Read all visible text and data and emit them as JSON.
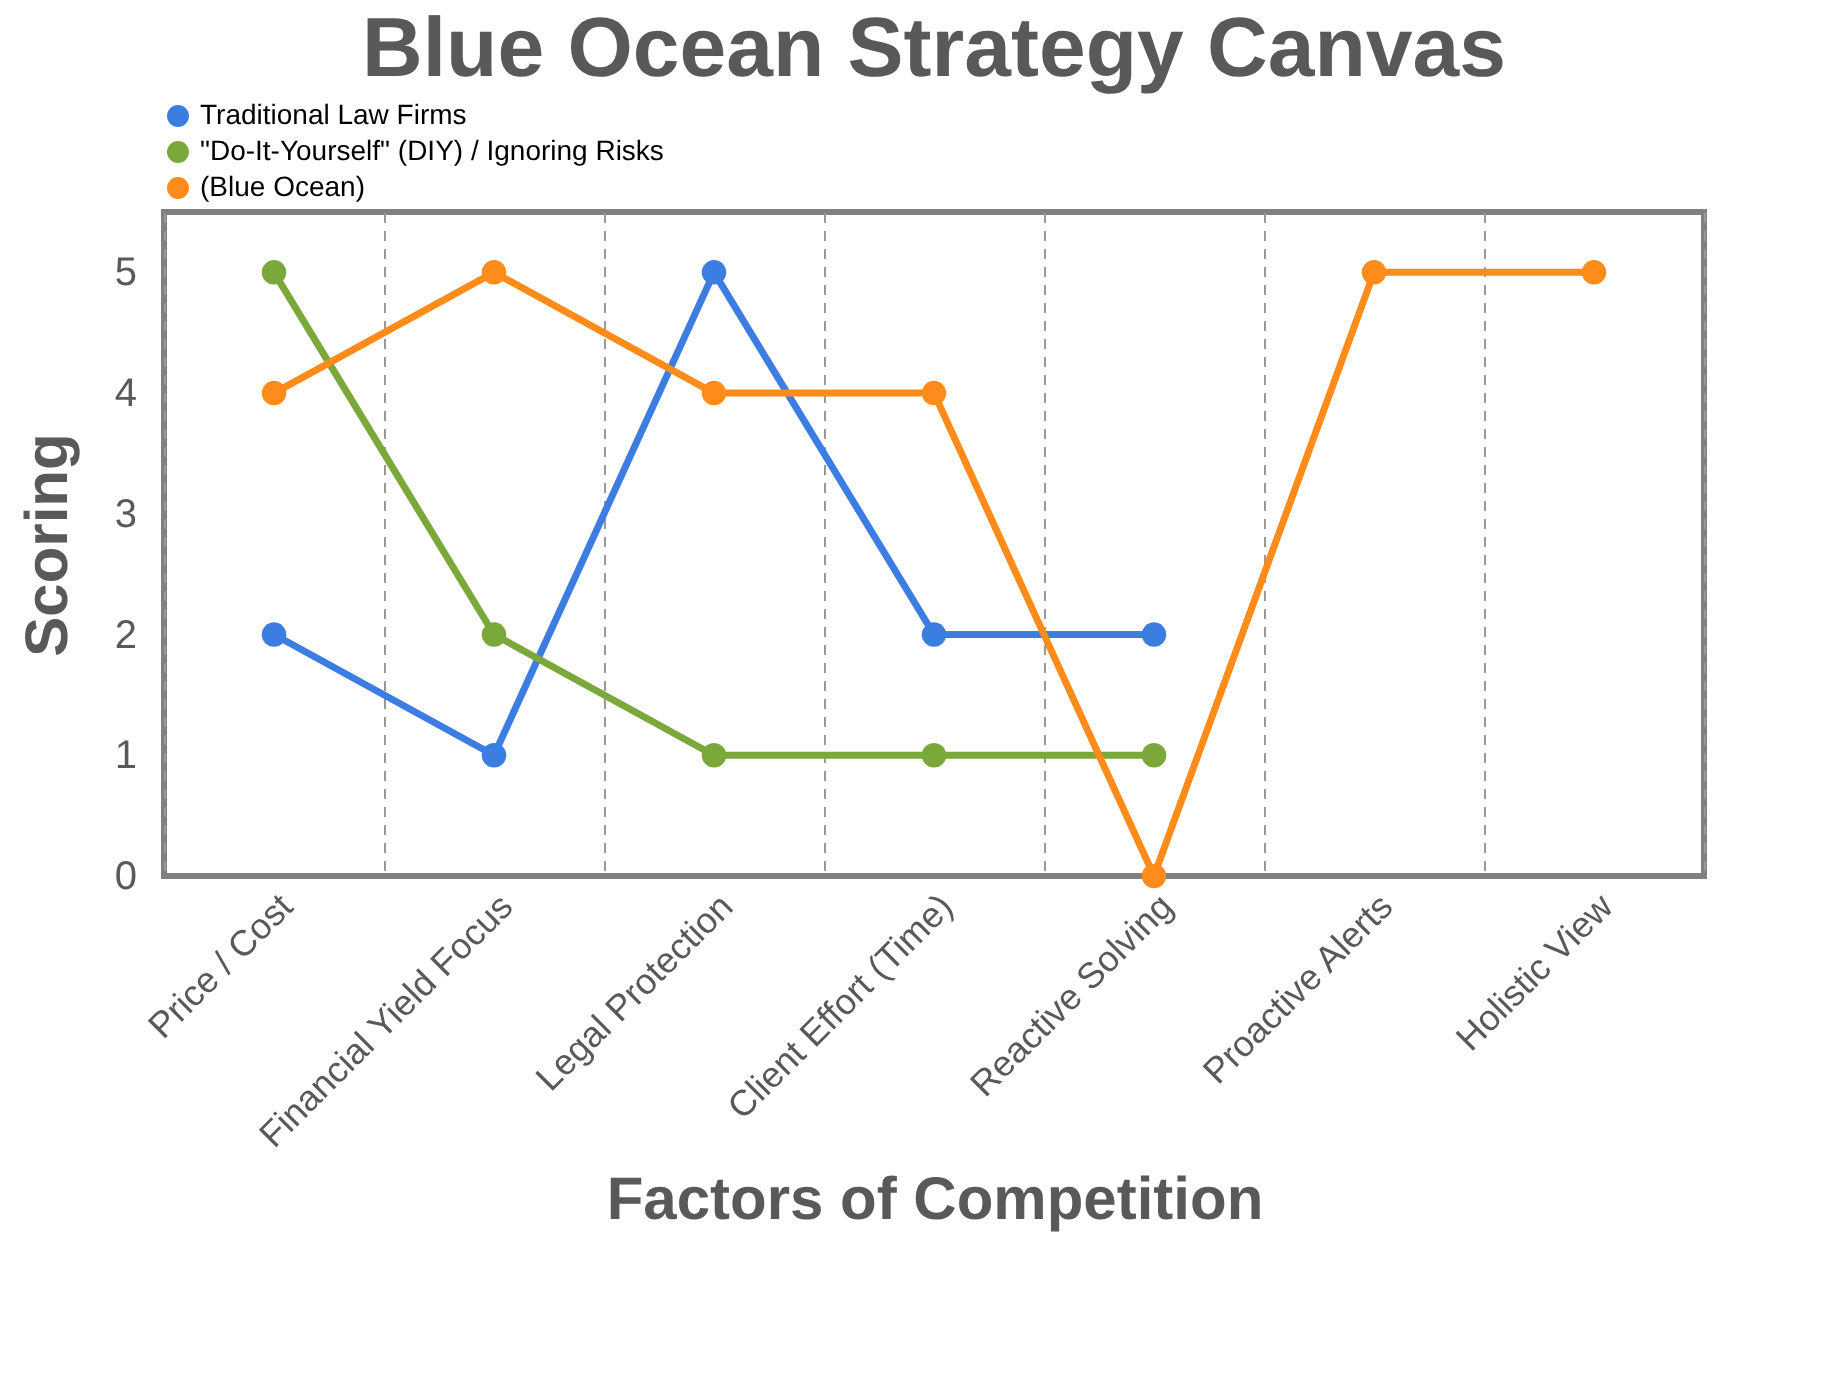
{
  "chart_data": {
    "type": "line",
    "title": "Blue Ocean Strategy Canvas",
    "xlabel": "Factors of Competition",
    "ylabel": "Scoring",
    "categories": [
      "Price / Cost",
      "Financial Yield Focus",
      "Legal Protection",
      "Client Effort (Time)",
      "Reactive Solving",
      "Proactive Alerts",
      "Holistic View"
    ],
    "series": [
      {
        "name": "Traditional Law Firms",
        "color": "#3b7de0",
        "values": [
          2,
          1,
          5,
          2,
          2,
          null,
          null
        ]
      },
      {
        "name": "\"Do-It-Yourself\" (DIY) / Ignoring Risks",
        "color": "#7aa83a",
        "values": [
          5,
          2,
          1,
          1,
          1,
          null,
          null
        ]
      },
      {
        "name": "(Blue Ocean)",
        "color": "#ff8c1a",
        "values": [
          4,
          5,
          4,
          4,
          0,
          5,
          5
        ]
      }
    ],
    "ylim": [
      0,
      5.5
    ],
    "yticks": [
      0,
      1,
      2,
      3,
      4,
      5
    ],
    "grid": "x",
    "legend": "top",
    "marker": "circle",
    "line_style": "solid"
  }
}
